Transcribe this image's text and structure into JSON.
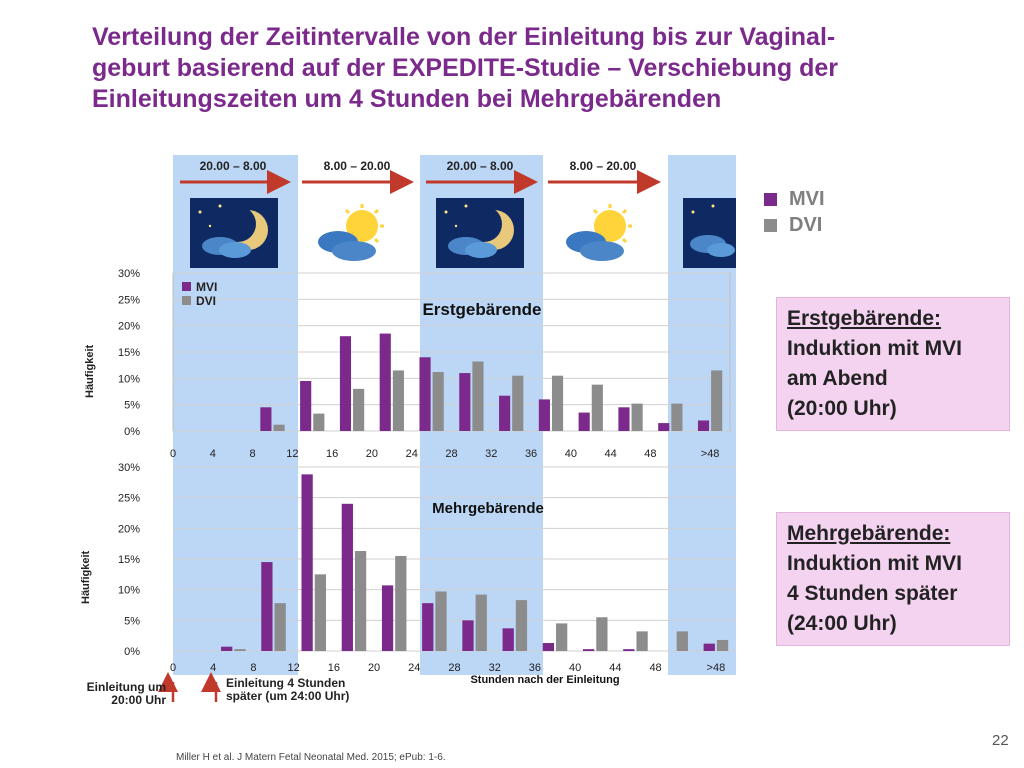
{
  "title": "Verteilung der Zeitintervalle von der Einleitung bis zur Vaginal-\ngeburt basierend auf der EXPEDITE-Studie – Verschiebung der\nEinleitungszeiten um 4 Stunden bei Mehrgebärenden",
  "time_headers": [
    "20.00 – 8.00",
    "8.00 – 20.00",
    "20.00 – 8.00",
    "8.00 – 20.00"
  ],
  "time_icons": [
    "night-moon-icon",
    "sun-cloud-icon",
    "night-moon-icon",
    "sun-cloud-icon",
    "night-moon-icon"
  ],
  "legend_top": [
    {
      "label": "MVI",
      "color": "#7b2a8c"
    },
    {
      "label": "DVI",
      "color": "#8c8c8c"
    }
  ],
  "box1": {
    "heading": "Erstgebärende:",
    "lines": "Induktion mit MVI\nam Abend\n(20:00 Uhr)"
  },
  "box2": {
    "heading": "Mehrgebärende:",
    "lines": "Induktion mit MVI\n4 Stunden später\n(24:00 Uhr)"
  },
  "note_left": "Einleitung um\n20:00 Uhr",
  "note_right": "Einleitung 4 Stunden\nspäter (um 24:00 Uhr)",
  "reference": "Miller H et al. J Matern Fetal Neonatal Med. 2015; ePub: 1-6.",
  "page_number": "22",
  "colors": {
    "mvi": "#7b2a8c",
    "dvi": "#8c8c8c",
    "band": "#bcd6f5",
    "title": "#7b2a8c"
  },
  "chart_data": [
    {
      "type": "bar",
      "title": "Erstgebärende",
      "ylabel": "Häufigkeit",
      "xlabel": "",
      "categories": [
        "0",
        "4",
        "8",
        "12",
        "16",
        "20",
        "24",
        "28",
        "32",
        "36",
        "40",
        "44",
        "48",
        ">48"
      ],
      "yticks": [
        "0%",
        "5%",
        "10%",
        "15%",
        "20%",
        "25%",
        "30%"
      ],
      "ylim": [
        0,
        30
      ],
      "legend": [
        "MVI",
        "DVI"
      ],
      "series": [
        {
          "name": "MVI",
          "values": [
            0,
            0,
            4.5,
            9.5,
            18,
            18.5,
            14,
            11,
            6.7,
            6,
            3.5,
            4.5,
            1.5,
            2
          ]
        },
        {
          "name": "DVI",
          "values": [
            0,
            0,
            1.2,
            3.3,
            8,
            11.5,
            11.2,
            13.2,
            10.5,
            10.5,
            8.8,
            5.2,
            5.2,
            11.5
          ]
        }
      ]
    },
    {
      "type": "bar",
      "title": "Mehrgebärende",
      "ylabel": "Häufigkeit",
      "xlabel": "Stunden nach der Einleitung",
      "categories": [
        "0",
        "4",
        "8",
        "12",
        "16",
        "20",
        "24",
        "28",
        "32",
        "36",
        "40",
        "44",
        "48",
        ">48"
      ],
      "yticks": [
        "0%",
        "5%",
        "10%",
        "15%",
        "20%",
        "25%",
        "30%"
      ],
      "ylim": [
        0,
        30
      ],
      "series": [
        {
          "name": "MVI",
          "values": [
            0,
            0.7,
            14.5,
            28.8,
            24,
            10.7,
            7.8,
            5,
            3.7,
            1.3,
            0.3,
            0.3,
            0,
            1.2
          ]
        },
        {
          "name": "DVI",
          "values": [
            0,
            0.3,
            7.8,
            12.5,
            16.3,
            15.5,
            9.7,
            9.2,
            8.3,
            4.5,
            5.5,
            3.2,
            3.2,
            1.8
          ]
        }
      ]
    }
  ]
}
